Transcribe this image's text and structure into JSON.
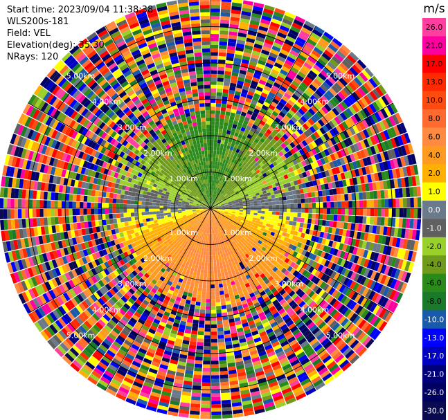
{
  "header": {
    "start_time": "Start time: 2023/09/04 11:38:38",
    "instrument": "WLS200s-181",
    "field": "Field: VEL",
    "elevation": "Elevation(deg): 35.30",
    "nrays": "NRays: 120"
  },
  "chart_data": {
    "type": "heatmap",
    "projection": "polar-ppi",
    "field": "VEL",
    "units": "m/s",
    "nrays": 120,
    "elevation_deg": 35.3,
    "range_rings_km": [
      1.0,
      2.0,
      3.0,
      4.0,
      5.0
    ],
    "range_ring_labels": [
      "1.00km",
      "2.00km",
      "3.00km",
      "4.00km",
      "5.00km"
    ],
    "max_range_km": 5.8,
    "colorbar": {
      "title": "m/s",
      "ticks": [
        "26.0",
        "21.0",
        "17.0",
        "13.0",
        "10.0",
        "8.0",
        "6.0",
        "4.0",
        "2.0",
        "1.0",
        "0.0",
        "-1.0",
        "-2.0",
        "-4.0",
        "-6.0",
        "-8.0",
        "-10.0",
        "-13.0",
        "-17.0",
        "-21.0",
        "-26.0",
        "-30.0"
      ],
      "colors": [
        "#ff3fa0",
        "#ff00a0",
        "#ff0000",
        "#ff2a00",
        "#ff4a10",
        "#ff6a30",
        "#ff8a40",
        "#ff9a20",
        "#ffb000",
        "#ffff00",
        "#6a7a8a",
        "#606060",
        "#9ad02a",
        "#6f9a1a",
        "#2a8a1a",
        "#1a7a2a",
        "#1a5aaa",
        "#0000ff",
        "#0000c0",
        "#00007a",
        "#000060",
        "#0a0a50"
      ]
    },
    "pattern_summary": {
      "north_sector_near": "negative velocities (-2 to -8 m/s, greens)",
      "south_sector_near": "positive velocities (1 to 4 m/s, yellow/orange)",
      "east_west_axis": "near-zero velocities (grey)",
      "beyond_about_2_5_km": "noise, all velocity classes"
    }
  }
}
